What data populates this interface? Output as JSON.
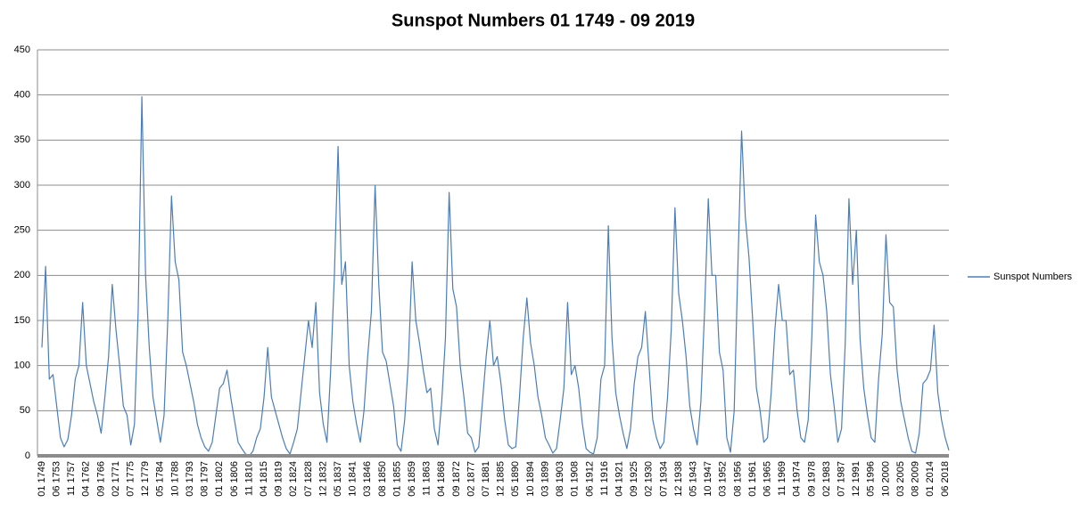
{
  "chart_data": {
    "type": "line",
    "title": "Sunspot Numbers 01 1749 - 09 2019",
    "categories": [
      "01 1749",
      null,
      null,
      null,
      "06 1753",
      null,
      null,
      null,
      "11 1757",
      null,
      null,
      null,
      "04 1762",
      null,
      null,
      null,
      "09 1766",
      null,
      null,
      null,
      "02 1771",
      null,
      null,
      null,
      "07 1775",
      null,
      null,
      null,
      "12 1779",
      null,
      null,
      null,
      "05 1784",
      null,
      null,
      null,
      "10 1788",
      null,
      null,
      null,
      "03 1793",
      null,
      null,
      null,
      "08 1797",
      null,
      null,
      null,
      "01 1802",
      null,
      null,
      null,
      "06 1806",
      null,
      null,
      null,
      "11 1810",
      null,
      null,
      null,
      "04 1815",
      null,
      null,
      null,
      "09 1819",
      null,
      null,
      null,
      "02 1824",
      null,
      null,
      null,
      "07 1828",
      null,
      null,
      null,
      "12 1832",
      null,
      null,
      null,
      "05 1837",
      null,
      null,
      null,
      "10 1841",
      null,
      null,
      null,
      "03 1846",
      null,
      null,
      null,
      "08 1850",
      null,
      null,
      null,
      "01 1855",
      null,
      null,
      null,
      "06 1859",
      null,
      null,
      null,
      "11 1863",
      null,
      null,
      null,
      "04 1868",
      null,
      null,
      null,
      "09 1872",
      null,
      null,
      null,
      "02 1877",
      null,
      null,
      null,
      "07 1881",
      null,
      null,
      null,
      "12 1885",
      null,
      null,
      null,
      "05 1890",
      null,
      null,
      null,
      "10 1894",
      null,
      null,
      null,
      "03 1899",
      null,
      null,
      null,
      "08 1903",
      null,
      null,
      null,
      "01 1908",
      null,
      null,
      null,
      "06 1912",
      null,
      null,
      null,
      "11 1916",
      null,
      null,
      null,
      "04 1921",
      null,
      null,
      null,
      "09 1925",
      null,
      null,
      null,
      "02 1930",
      null,
      null,
      null,
      "07 1934",
      null,
      null,
      null,
      "12 1938",
      null,
      null,
      null,
      "05 1943",
      null,
      null,
      null,
      "10 1947",
      null,
      null,
      null,
      "03 1952",
      null,
      null,
      null,
      "08 1956",
      null,
      null,
      null,
      "01 1961",
      null,
      null,
      null,
      "06 1965",
      null,
      null,
      null,
      "11 1969",
      null,
      null,
      null,
      "04 1974",
      null,
      null,
      null,
      "09 1978",
      null,
      null,
      null,
      "02 1983",
      null,
      null,
      null,
      "07 1987",
      null,
      null,
      null,
      "12 1991",
      null,
      null,
      null,
      "05 1996",
      null,
      null,
      null,
      "10 2000",
      null,
      null,
      null,
      "03 2005",
      null,
      null,
      null,
      "08 2009",
      null,
      null,
      null,
      "01 2014",
      null,
      null,
      null,
      "06 2018",
      null
    ],
    "series": [
      {
        "name": "Sunspot Numbers",
        "color": "#4a7ebb",
        "values": [
          120,
          210,
          85,
          90,
          55,
          20,
          10,
          18,
          45,
          85,
          100,
          170,
          100,
          80,
          60,
          45,
          25,
          65,
          110,
          190,
          140,
          100,
          55,
          45,
          12,
          35,
          160,
          398,
          200,
          120,
          65,
          40,
          15,
          45,
          150,
          288,
          215,
          195,
          115,
          100,
          80,
          60,
          35,
          20,
          10,
          5,
          15,
          45,
          75,
          80,
          95,
          65,
          40,
          15,
          8,
          2,
          0,
          5,
          20,
          30,
          65,
          120,
          65,
          50,
          35,
          20,
          8,
          2,
          15,
          30,
          70,
          110,
          150,
          120,
          170,
          70,
          35,
          15,
          95,
          200,
          343,
          190,
          215,
          100,
          60,
          35,
          15,
          50,
          110,
          160,
          300,
          190,
          115,
          105,
          80,
          55,
          12,
          5,
          40,
          105,
          215,
          150,
          125,
          95,
          70,
          75,
          30,
          12,
          60,
          130,
          292,
          185,
          165,
          100,
          65,
          25,
          20,
          4,
          10,
          60,
          110,
          150,
          100,
          110,
          80,
          40,
          12,
          8,
          10,
          65,
          130,
          175,
          125,
          100,
          65,
          45,
          20,
          12,
          3,
          8,
          40,
          75,
          170,
          90,
          100,
          75,
          35,
          8,
          4,
          2,
          20,
          85,
          100,
          255,
          130,
          70,
          45,
          25,
          8,
          30,
          80,
          110,
          120,
          160,
          100,
          40,
          20,
          8,
          15,
          65,
          140,
          275,
          180,
          150,
          110,
          55,
          30,
          12,
          60,
          160,
          285,
          200,
          200,
          115,
          95,
          20,
          4,
          50,
          210,
          360,
          265,
          220,
          150,
          75,
          50,
          15,
          20,
          70,
          140,
          190,
          150,
          150,
          90,
          95,
          50,
          20,
          15,
          40,
          135,
          267,
          215,
          200,
          160,
          90,
          55,
          15,
          30,
          125,
          285,
          190,
          250,
          130,
          75,
          45,
          20,
          15,
          85,
          135,
          245,
          170,
          165,
          95,
          60,
          40,
          20,
          5,
          3,
          25,
          80,
          85,
          95,
          145,
          70,
          40,
          20,
          6
        ]
      }
    ],
    "ylim": [
      0,
      450
    ],
    "yticks": [
      0,
      50,
      100,
      150,
      200,
      250,
      300,
      350,
      400,
      450
    ],
    "grid": true,
    "legend": "right"
  }
}
